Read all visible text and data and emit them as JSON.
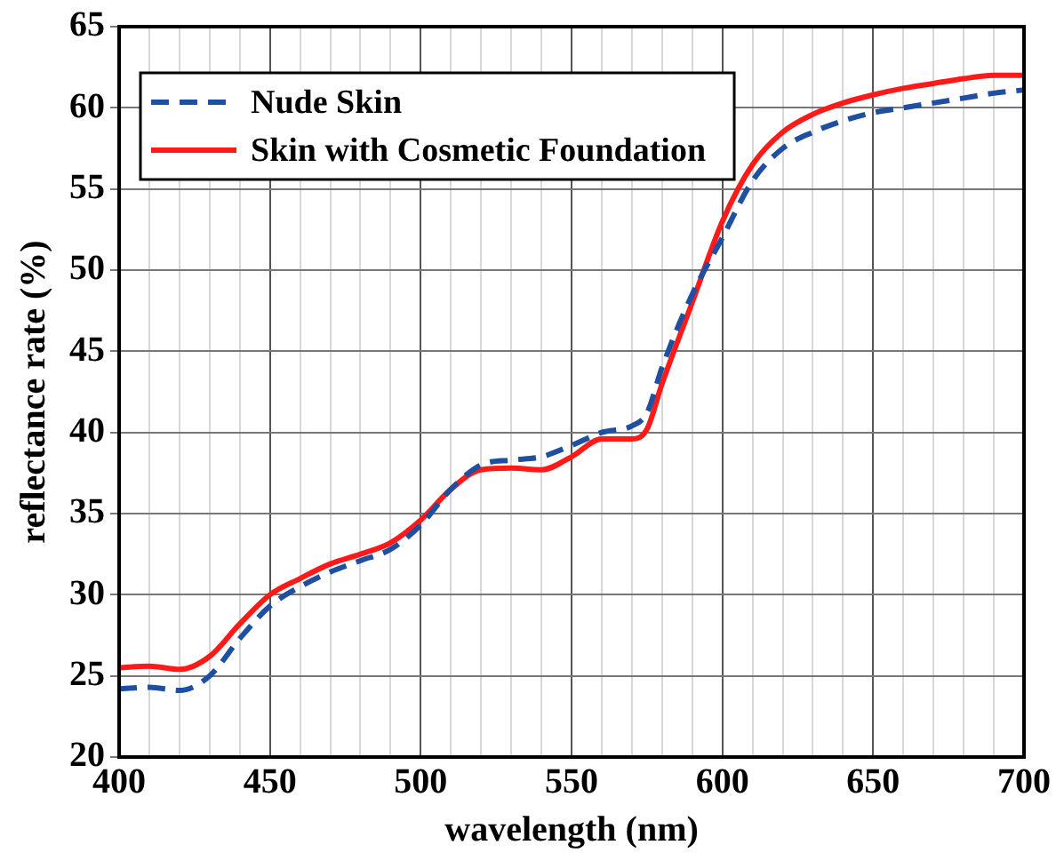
{
  "chart_data": {
    "type": "line",
    "xlabel": "wavelength (nm)",
    "ylabel": "reflectance rate (%)",
    "x": [
      400,
      410,
      420,
      430,
      440,
      450,
      460,
      470,
      480,
      490,
      500,
      510,
      520,
      530,
      540,
      550,
      560,
      570,
      575,
      580,
      590,
      600,
      610,
      620,
      630,
      640,
      650,
      660,
      670,
      680,
      690,
      700
    ],
    "series": [
      {
        "name": "Nude Skin",
        "color": "#1f4fa0",
        "line_style": "dashed",
        "values": [
          24.2,
          24.3,
          24.1,
          25.0,
          27.3,
          29.3,
          30.5,
          31.4,
          32.1,
          32.8,
          34.3,
          36.5,
          38.0,
          38.3,
          38.5,
          39.2,
          40.0,
          40.4,
          41.2,
          44.0,
          48.5,
          52.0,
          55.5,
          57.5,
          58.5,
          59.2,
          59.7,
          60.0,
          60.3,
          60.6,
          60.9,
          61.1
        ]
      },
      {
        "name": "Skin with Cosmetic Foundation",
        "color": "#ff1a1a",
        "line_style": "solid",
        "values": [
          25.5,
          25.6,
          25.4,
          26.2,
          28.2,
          30.0,
          31.0,
          31.9,
          32.5,
          33.2,
          34.6,
          36.5,
          37.7,
          37.8,
          37.7,
          38.5,
          39.6,
          39.6,
          40.2,
          43.0,
          48.0,
          53.0,
          56.5,
          58.5,
          59.6,
          60.3,
          60.8,
          61.2,
          61.5,
          61.8,
          62.0,
          62.0
        ]
      }
    ],
    "xlim": [
      400,
      700
    ],
    "ylim": [
      20,
      65
    ],
    "xticks": [
      400,
      {
        "value": 410,
        "label": null
      },
      {
        "value": 420,
        "label": null
      },
      {
        "value": 430,
        "label": null
      },
      {
        "value": 440,
        "label": null
      },
      450,
      {
        "value": 460,
        "label": null
      },
      {
        "value": 470,
        "label": null
      },
      {
        "value": 480,
        "label": null
      },
      {
        "value": 490,
        "label": null
      },
      500,
      {
        "value": 510,
        "label": null
      },
      {
        "value": 520,
        "label": null
      },
      {
        "value": 530,
        "label": null
      },
      {
        "value": 540,
        "label": null
      },
      550,
      {
        "value": 560,
        "label": null
      },
      {
        "value": 570,
        "label": null
      },
      {
        "value": 580,
        "label": null
      },
      {
        "value": 590,
        "label": null
      },
      600,
      {
        "value": 610,
        "label": null
      },
      {
        "value": 620,
        "label": null
      },
      {
        "value": 630,
        "label": null
      },
      {
        "value": 640,
        "label": null
      },
      650,
      {
        "value": 660,
        "label": null
      },
      {
        "value": 670,
        "label": null
      },
      {
        "value": 680,
        "label": null
      },
      {
        "value": 690,
        "label": null
      },
      700
    ],
    "yticks": [
      20,
      25,
      30,
      35,
      40,
      45,
      50,
      55,
      60,
      65
    ],
    "grid": true,
    "legend": "top left",
    "marker": "none"
  }
}
